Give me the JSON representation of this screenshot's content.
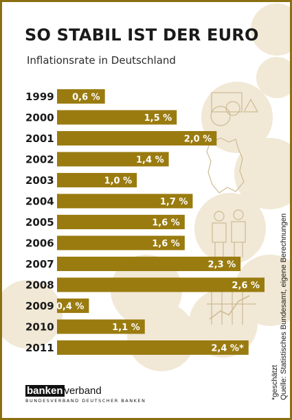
{
  "title": "SO STABIL IST DER EURO",
  "subtitle": "Inflationsrate in Deutschland",
  "chart_data": {
    "type": "bar",
    "orientation": "horizontal",
    "categories": [
      "1999",
      "2000",
      "2001",
      "2002",
      "2003",
      "2004",
      "2005",
      "2006",
      "2007",
      "2008",
      "2009",
      "2010",
      "2011"
    ],
    "values": [
      0.6,
      1.5,
      2.0,
      1.4,
      1.0,
      1.7,
      1.6,
      1.6,
      2.3,
      2.6,
      0.4,
      1.1,
      2.4
    ],
    "labels": [
      "0,6 %",
      "1,5 %",
      "2,0 %",
      "1,4 %",
      "1,0 %",
      "1,7 %",
      "1,6 %",
      "1,6 %",
      "2,3 %",
      "2,6 %",
      "0,4 %",
      "1,1 %",
      "2,4 %*"
    ],
    "unit": "%",
    "xlim": [
      0,
      2.6
    ],
    "grid": false,
    "bar_color": "#9a7b10",
    "label_color": "#ffffff"
  },
  "footnote": "*geschätzt",
  "source": "Quelle: Statistisches  Bundesamt, eigene Berechnungen",
  "logo": {
    "box_text": "banken",
    "rest_text": "verband",
    "subtitle": "BUNDESVERBAND DEUTSCHER BANKEN"
  },
  "colors": {
    "frame": "#8a6f12",
    "bar": "#9a7b10",
    "background_circles": "#f1e8d6",
    "icon_stroke": "#cdbb92"
  }
}
